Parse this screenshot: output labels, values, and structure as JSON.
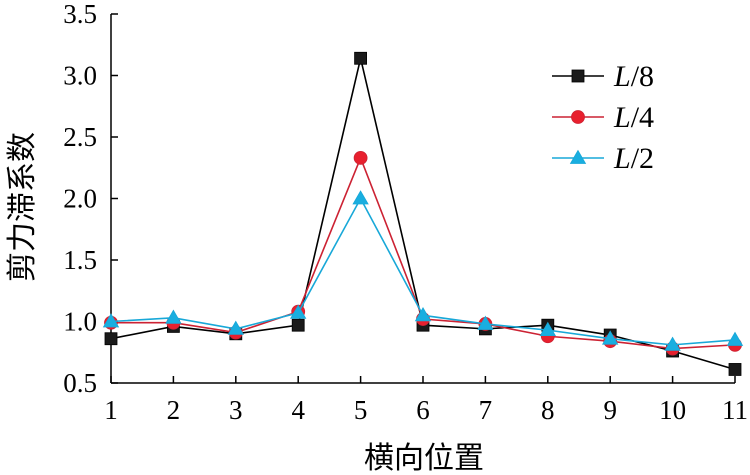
{
  "chart_data": {
    "type": "line",
    "xlabel": "横向位置",
    "ylabel": "剪力滞系数",
    "xlim": [
      1,
      11
    ],
    "ylim": [
      0.5,
      3.5
    ],
    "x_ticks": [
      "1",
      "2",
      "3",
      "4",
      "5",
      "6",
      "7",
      "8",
      "9",
      "10",
      "11"
    ],
    "y_ticks": [
      "0.5",
      "1.0",
      "1.5",
      "2.0",
      "2.5",
      "3.0",
      "3.5"
    ],
    "x": [
      1,
      2,
      3,
      4,
      5,
      6,
      7,
      8,
      9,
      10,
      11
    ],
    "grid": false,
    "legend_position": "top-right",
    "series": [
      {
        "name": "L/8",
        "name_var": "L",
        "name_rest": "/8",
        "color": "#000000",
        "marker": "square",
        "marker_color": "#1a1a1a",
        "values": [
          0.86,
          0.96,
          0.9,
          0.97,
          3.14,
          0.97,
          0.94,
          0.97,
          0.89,
          0.76,
          0.61
        ]
      },
      {
        "name": "L/4",
        "name_var": "L",
        "name_rest": "/4",
        "color": "#cc2233",
        "marker": "circle",
        "marker_color": "#e8202e",
        "values": [
          0.99,
          0.99,
          0.91,
          1.08,
          2.33,
          1.02,
          0.98,
          0.88,
          0.84,
          0.78,
          0.81
        ]
      },
      {
        "name": "L/2",
        "name_var": "L",
        "name_rest": "/2",
        "color": "#18a8d8",
        "marker": "triangle",
        "marker_color": "#19aee0",
        "values": [
          1.0,
          1.03,
          0.94,
          1.07,
          2.0,
          1.05,
          0.98,
          0.93,
          0.86,
          0.81,
          0.85
        ]
      }
    ]
  }
}
